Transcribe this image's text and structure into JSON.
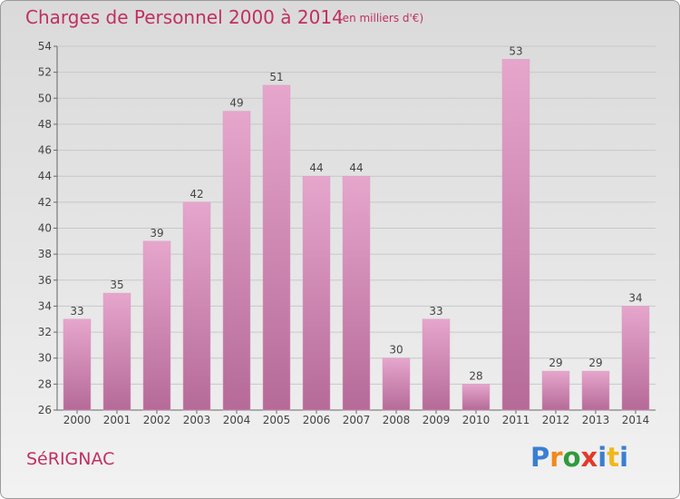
{
  "header": {
    "title": "Charges de Personnel 2000 à 2014",
    "subtitle": "(en milliers d'€)"
  },
  "footer": {
    "commune": "SéRIGNAC",
    "logo_text": "Proxiti",
    "logo_letter_colors": [
      "#3a7fd0",
      "#f08a1c",
      "#2f9a3c",
      "#e23a2a",
      "#3a7fd0",
      "#f0b81c",
      "#3a7fd0"
    ]
  },
  "colors": {
    "accent": "#c03060",
    "bar_light": "#e6a6cc",
    "bar_dark": "#b56a98",
    "grid": "#c8c8c8"
  },
  "chart_data": {
    "type": "bar",
    "title": "Charges de Personnel 2000 à 2014",
    "subtitle": "(en milliers d'€)",
    "categories": [
      "2000",
      "2001",
      "2002",
      "2003",
      "2004",
      "2005",
      "2006",
      "2007",
      "2008",
      "2009",
      "2010",
      "2011",
      "2012",
      "2013",
      "2014"
    ],
    "values": [
      33,
      35,
      39,
      42,
      49,
      51,
      44,
      44,
      30,
      33,
      28,
      53,
      29,
      29,
      34
    ],
    "ylim": [
      26,
      54
    ],
    "yticks": [
      26,
      28,
      30,
      32,
      34,
      36,
      38,
      40,
      42,
      44,
      46,
      48,
      50,
      52,
      54
    ],
    "grid": true,
    "data_labels": true
  }
}
